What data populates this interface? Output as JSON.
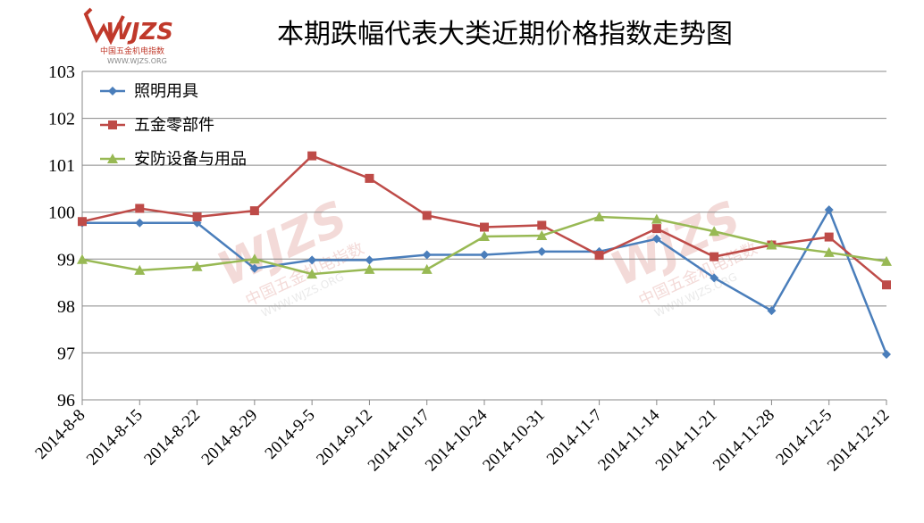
{
  "logo": {
    "brand": "WJZS",
    "subtitle": "中国五金机电指数",
    "url": "WWW.WJZS.ORG"
  },
  "chart_data": {
    "type": "line",
    "title": "本期跌幅代表大类近期价格指数走势图",
    "xlabel": "",
    "ylabel": "",
    "categories": [
      "2014-8-8",
      "2014-8-15",
      "2014-8-22",
      "2014-8-29",
      "2014-9-5",
      "2014-9-12",
      "2014-10-17",
      "2014-10-24",
      "2014-10-31",
      "2014-11-7",
      "2014-11-14",
      "2014-11-21",
      "2014-11-28",
      "2014-12-5",
      "2014-12-12"
    ],
    "ylim": [
      96,
      103
    ],
    "yticks": [
      96,
      97,
      98,
      99,
      100,
      101,
      102,
      103
    ],
    "grid": true,
    "legend_position": "top-left",
    "series": [
      {
        "name": "照明用具",
        "color": "#4a7ebb",
        "marker": "diamond",
        "values": [
          99.77,
          99.77,
          99.77,
          98.8,
          98.98,
          98.98,
          99.09,
          99.09,
          99.16,
          99.16,
          99.43,
          98.6,
          97.9,
          100.05,
          96.97
        ]
      },
      {
        "name": "五金零部件",
        "color": "#be4b48",
        "marker": "square",
        "values": [
          99.8,
          100.08,
          99.9,
          100.03,
          101.2,
          100.72,
          99.93,
          99.68,
          99.72,
          99.08,
          99.65,
          99.05,
          99.3,
          99.47,
          98.45
        ]
      },
      {
        "name": "安防设备与用品",
        "color": "#98b954",
        "marker": "triangle",
        "values": [
          98.99,
          98.76,
          98.84,
          99.0,
          98.68,
          98.78,
          98.78,
          99.48,
          99.5,
          99.9,
          99.85,
          99.59,
          99.3,
          99.14,
          98.95
        ]
      }
    ]
  }
}
